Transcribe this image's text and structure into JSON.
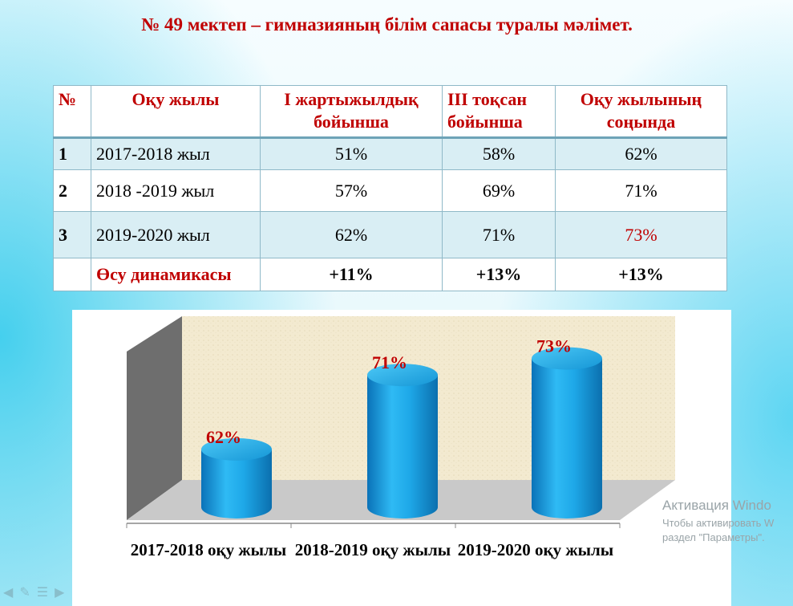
{
  "title": "№ 49 мектеп – гимназияның білім сапасы туралы мәлімет.",
  "table": {
    "headers": [
      "№",
      "Оқу жылы",
      "І жартыжылдық бойынша",
      "ІІІ тоқсан бойынша",
      "Оқу жылының соңында"
    ],
    "rows": [
      {
        "num": "1",
        "year": "2017-2018 жыл",
        "h1": "51%",
        "q3": "58%",
        "end": "62%"
      },
      {
        "num": "2",
        "year": "2018 -2019 жыл",
        "h1": "57%",
        "q3": "69%",
        "end": "71%"
      },
      {
        "num": "3",
        "year": "2019-2020 жыл",
        "h1": "62%",
        "q3": "71%",
        "end": "73%"
      }
    ],
    "growth": {
      "label": "Өсу динамикасы",
      "h1": "+11%",
      "q3": "+13%",
      "end": "+13%"
    }
  },
  "chart_data": {
    "type": "bar",
    "categories": [
      "2017-2018 оқу жылы",
      "2018-2019 оқу жылы",
      "2019-2020 оқу жылы"
    ],
    "values": [
      62,
      71,
      73
    ],
    "value_labels": [
      "62%",
      "71%",
      "73%"
    ],
    "ylim": [
      55,
      75
    ],
    "grid": false,
    "colors": {
      "bar": "#1ba6e6",
      "label": "#c00000",
      "wall": "#f3ead0",
      "floor": "#c6c6c6"
    }
  },
  "watermark": {
    "line1": "Активация Windo",
    "line2": "Чтобы активировать W",
    "line3": "раздел \"Параметры\"."
  },
  "toolbar_icons": [
    "arrow-left-icon",
    "pen-icon",
    "menu-icon",
    "arrow-right-icon"
  ]
}
